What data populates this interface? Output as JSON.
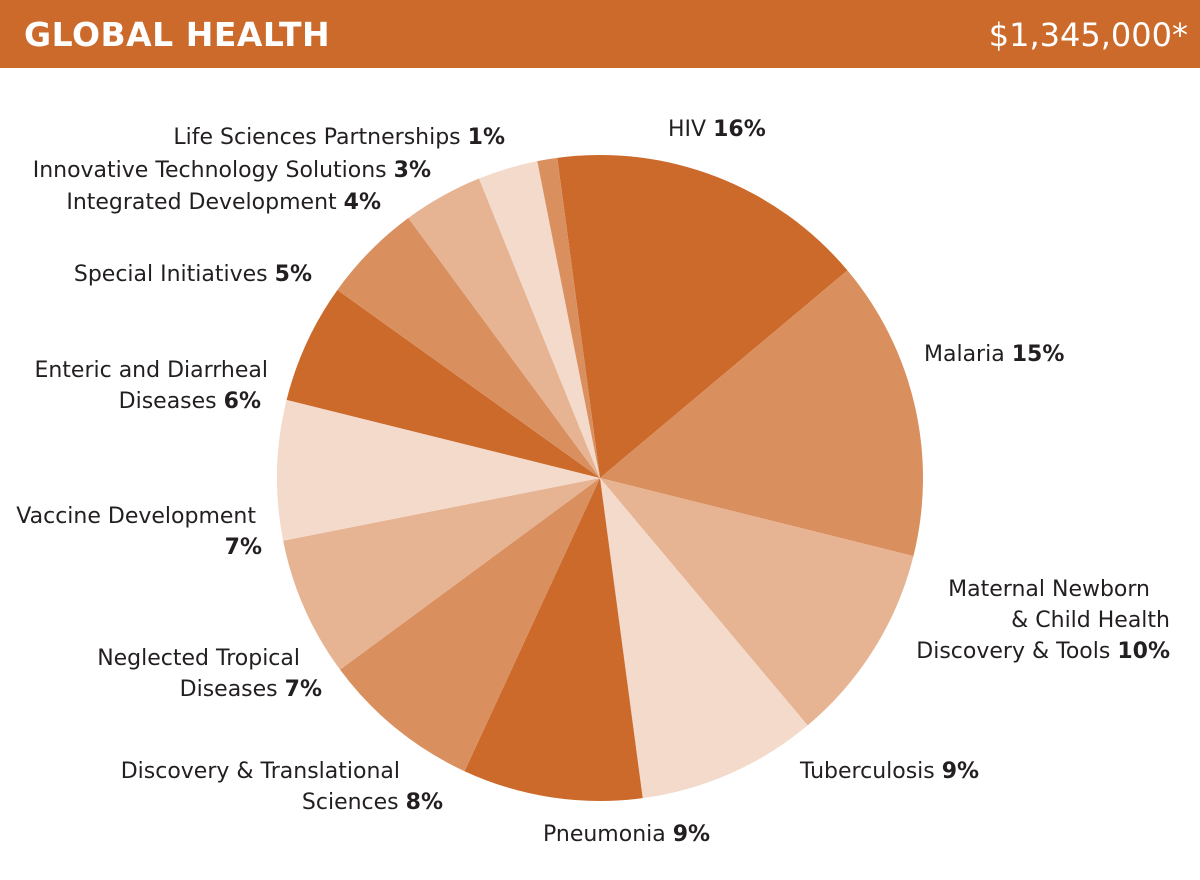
{
  "header": {
    "title": "GLOBAL HEALTH",
    "total": "$1,345,000*"
  },
  "chart_data": {
    "type": "pie",
    "title": "GLOBAL HEALTH",
    "total": "$1,345,000*",
    "start_angle_deg": -7.6,
    "direction": "clockwise",
    "slices": [
      {
        "lines": [
          "HIV"
        ],
        "label": "HIV",
        "pct_label": "16%",
        "value": 16,
        "color": "#cc6a2b"
      },
      {
        "lines": [
          "Malaria"
        ],
        "label": "Malaria",
        "pct_label": "15%",
        "value": 15,
        "color": "#da8f5f"
      },
      {
        "lines": [
          "Maternal Newborn",
          "& Child Health",
          "Discovery & Tools"
        ],
        "label": "Maternal Newborn & Child Health Discovery & Tools",
        "pct_label": "10%",
        "value": 10,
        "color": "#e6b493"
      },
      {
        "lines": [
          "Tuberculosis"
        ],
        "label": "Tuberculosis",
        "pct_label": "9%",
        "value": 9,
        "color": "#f3dacb"
      },
      {
        "lines": [
          "Pneumonia"
        ],
        "label": "Pneumonia",
        "pct_label": "9%",
        "value": 9,
        "color": "#cc6a2b"
      },
      {
        "lines": [
          "Discovery & Translational",
          "Sciences"
        ],
        "label": "Discovery & Translational Sciences",
        "pct_label": "8%",
        "value": 8,
        "color": "#da8f5f"
      },
      {
        "lines": [
          "Neglected Tropical",
          "Diseases"
        ],
        "label": "Neglected Tropical Diseases",
        "pct_label": "7%",
        "value": 7,
        "color": "#e6b493"
      },
      {
        "lines": [
          "Vaccine Development",
          ""
        ],
        "label": "Vaccine Development",
        "pct_label": "7%",
        "value": 7,
        "color": "#f3dacb"
      },
      {
        "lines": [
          "Enteric and Diarrheal",
          "Diseases"
        ],
        "label": "Enteric and Diarrheal Diseases",
        "pct_label": "6%",
        "value": 6,
        "color": "#cc6a2b"
      },
      {
        "lines": [
          "Special Initiatives"
        ],
        "label": "Special Initiatives",
        "pct_label": "5%",
        "value": 5,
        "color": "#da8f5f"
      },
      {
        "lines": [
          "Integrated Development"
        ],
        "label": "Integrated Development",
        "pct_label": "4%",
        "value": 4,
        "color": "#e6b493"
      },
      {
        "lines": [
          "Innovative Technology Solutions"
        ],
        "label": "Innovative Technology Solutions",
        "pct_label": "3%",
        "value": 3,
        "color": "#f3dacb"
      },
      {
        "lines": [
          "Life Sciences Partnerships"
        ],
        "label": "Life Sciences Partnerships",
        "pct_label": "1%",
        "value": 1,
        "color": "#da8f5f"
      }
    ]
  }
}
